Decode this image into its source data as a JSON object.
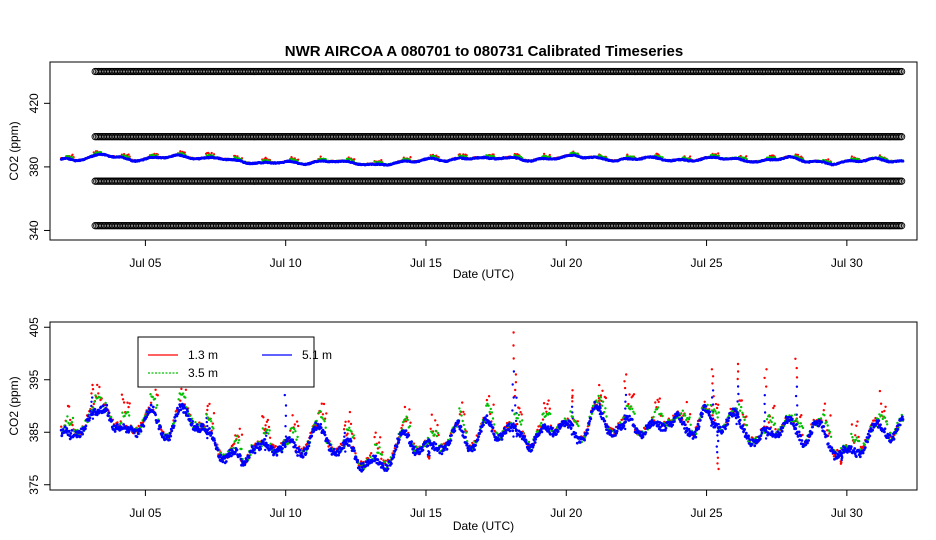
{
  "title": "NWR   AIRCOA  A    080701  to  080731   Calibrated Timeseries",
  "chart_data": [
    {
      "type": "scatter",
      "panel": "top",
      "xlabel": "Date (UTC)",
      "ylabel": "CO2 (ppm)",
      "xlim": [
        1.6,
        32.5
      ],
      "ylim": [
        334,
        446
      ],
      "x_ticks": [
        {
          "value": 5,
          "label": "Jul 05"
        },
        {
          "value": 10,
          "label": "Jul 10"
        },
        {
          "value": 15,
          "label": "Jul 15"
        },
        {
          "value": 20,
          "label": "Jul 20"
        },
        {
          "value": 25,
          "label": "Jul 25"
        },
        {
          "value": 30,
          "label": "Jul 30"
        }
      ],
      "y_ticks": [
        {
          "value": 340,
          "label": "340"
        },
        {
          "value": 380,
          "label": "380"
        },
        {
          "value": 420,
          "label": "420"
        }
      ],
      "reference_levels": [
        {
          "value": 440,
          "color": "#000000"
        },
        {
          "value": 399,
          "color": "#000000"
        },
        {
          "value": 371,
          "color": "#000000"
        },
        {
          "value": 343,
          "color": "#000000"
        }
      ],
      "series": [
        {
          "name": "1.3 m",
          "color": "#ff0000"
        },
        {
          "name": "3.5 m",
          "color": "#00c000"
        },
        {
          "name": "5.1 m",
          "color": "#0000ff"
        }
      ],
      "x_start": 2.0,
      "x_end": 32.0,
      "baseline": [
        385,
        384,
        386,
        388,
        386,
        384,
        385,
        386,
        387,
        386,
        385,
        386,
        384,
        383,
        382,
        383,
        383,
        382,
        383,
        384,
        383,
        382,
        381,
        382,
        383,
        384,
        385,
        384,
        385,
        386,
        385,
        386,
        385,
        384,
        385,
        386,
        387,
        386,
        385,
        384,
        385,
        386,
        385,
        384,
        384,
        385,
        386,
        385,
        384,
        383,
        385,
        386,
        384,
        383,
        382,
        383,
        384,
        385,
        384,
        383
      ]
    },
    {
      "type": "scatter",
      "panel": "bottom",
      "xlabel": "Date (UTC)",
      "ylabel": "CO2 (ppm)",
      "xlim": [
        1.6,
        32.5
      ],
      "ylim": [
        374,
        406
      ],
      "x_ticks": [
        {
          "value": 5,
          "label": "Jul 05"
        },
        {
          "value": 10,
          "label": "Jul 10"
        },
        {
          "value": 15,
          "label": "Jul 15"
        },
        {
          "value": 20,
          "label": "Jul 20"
        },
        {
          "value": 25,
          "label": "Jul 25"
        },
        {
          "value": 30,
          "label": "Jul 30"
        }
      ],
      "y_ticks": [
        {
          "value": 375,
          "label": "375"
        },
        {
          "value": 385,
          "label": "385"
        },
        {
          "value": 395,
          "label": "395"
        },
        {
          "value": 405,
          "label": "405"
        }
      ],
      "legend": {
        "placement": "top-left",
        "entries": [
          {
            "name": "1.3 m",
            "color": "#ff0000"
          },
          {
            "name": "5.1 m",
            "color": "#0000ff"
          },
          {
            "name": "3.5 m",
            "color": "#00c000"
          }
        ]
      },
      "series": [
        {
          "name": "1.3 m",
          "color": "#ff0000"
        },
        {
          "name": "3.5 m",
          "color": "#00c000"
        },
        {
          "name": "5.1 m",
          "color": "#0000ff"
        }
      ],
      "x_start": 2.0,
      "x_end": 32.0,
      "baseline": [
        385,
        383,
        386,
        388,
        387,
        391,
        386,
        384,
        386,
        387,
        388,
        386,
        385,
        388,
        389,
        387,
        384,
        383,
        381,
        380,
        379,
        383,
        381,
        382,
        383,
        382,
        381,
        383,
        385,
        384,
        383,
        381,
        382,
        380,
        379,
        378,
        380,
        382,
        384,
        383,
        382,
        381,
        383,
        384,
        385,
        383,
        384,
        386,
        385,
        386,
        384,
        385,
        383,
        384,
        386,
        387,
        385,
        384,
        386,
        389,
        387,
        386,
        385,
        387,
        386,
        385,
        386,
        388,
        387,
        385,
        386,
        389,
        386,
        387,
        388,
        386,
        385,
        383,
        384,
        386,
        387,
        385,
        384,
        386,
        385,
        383,
        381,
        380,
        382,
        384,
        385,
        386,
        385,
        386
      ],
      "spikes": [
        {
          "x": 3.1,
          "value": 394
        },
        {
          "x": 7.2,
          "value": 390
        },
        {
          "x": 9.3,
          "value": 387
        },
        {
          "x": 10.0,
          "value": 398
        },
        {
          "x": 12.1,
          "value": 387
        },
        {
          "x": 15.1,
          "value": 380
        },
        {
          "x": 18.1,
          "value": 404
        },
        {
          "x": 18.2,
          "value": 396
        },
        {
          "x": 20.2,
          "value": 393
        },
        {
          "x": 21.2,
          "value": 392
        },
        {
          "x": 22.1,
          "value": 396
        },
        {
          "x": 25.2,
          "value": 397
        },
        {
          "x": 25.4,
          "value": 378
        },
        {
          "x": 26.1,
          "value": 398
        },
        {
          "x": 27.1,
          "value": 397
        },
        {
          "x": 28.2,
          "value": 399
        },
        {
          "x": 29.8,
          "value": 379
        }
      ]
    }
  ]
}
